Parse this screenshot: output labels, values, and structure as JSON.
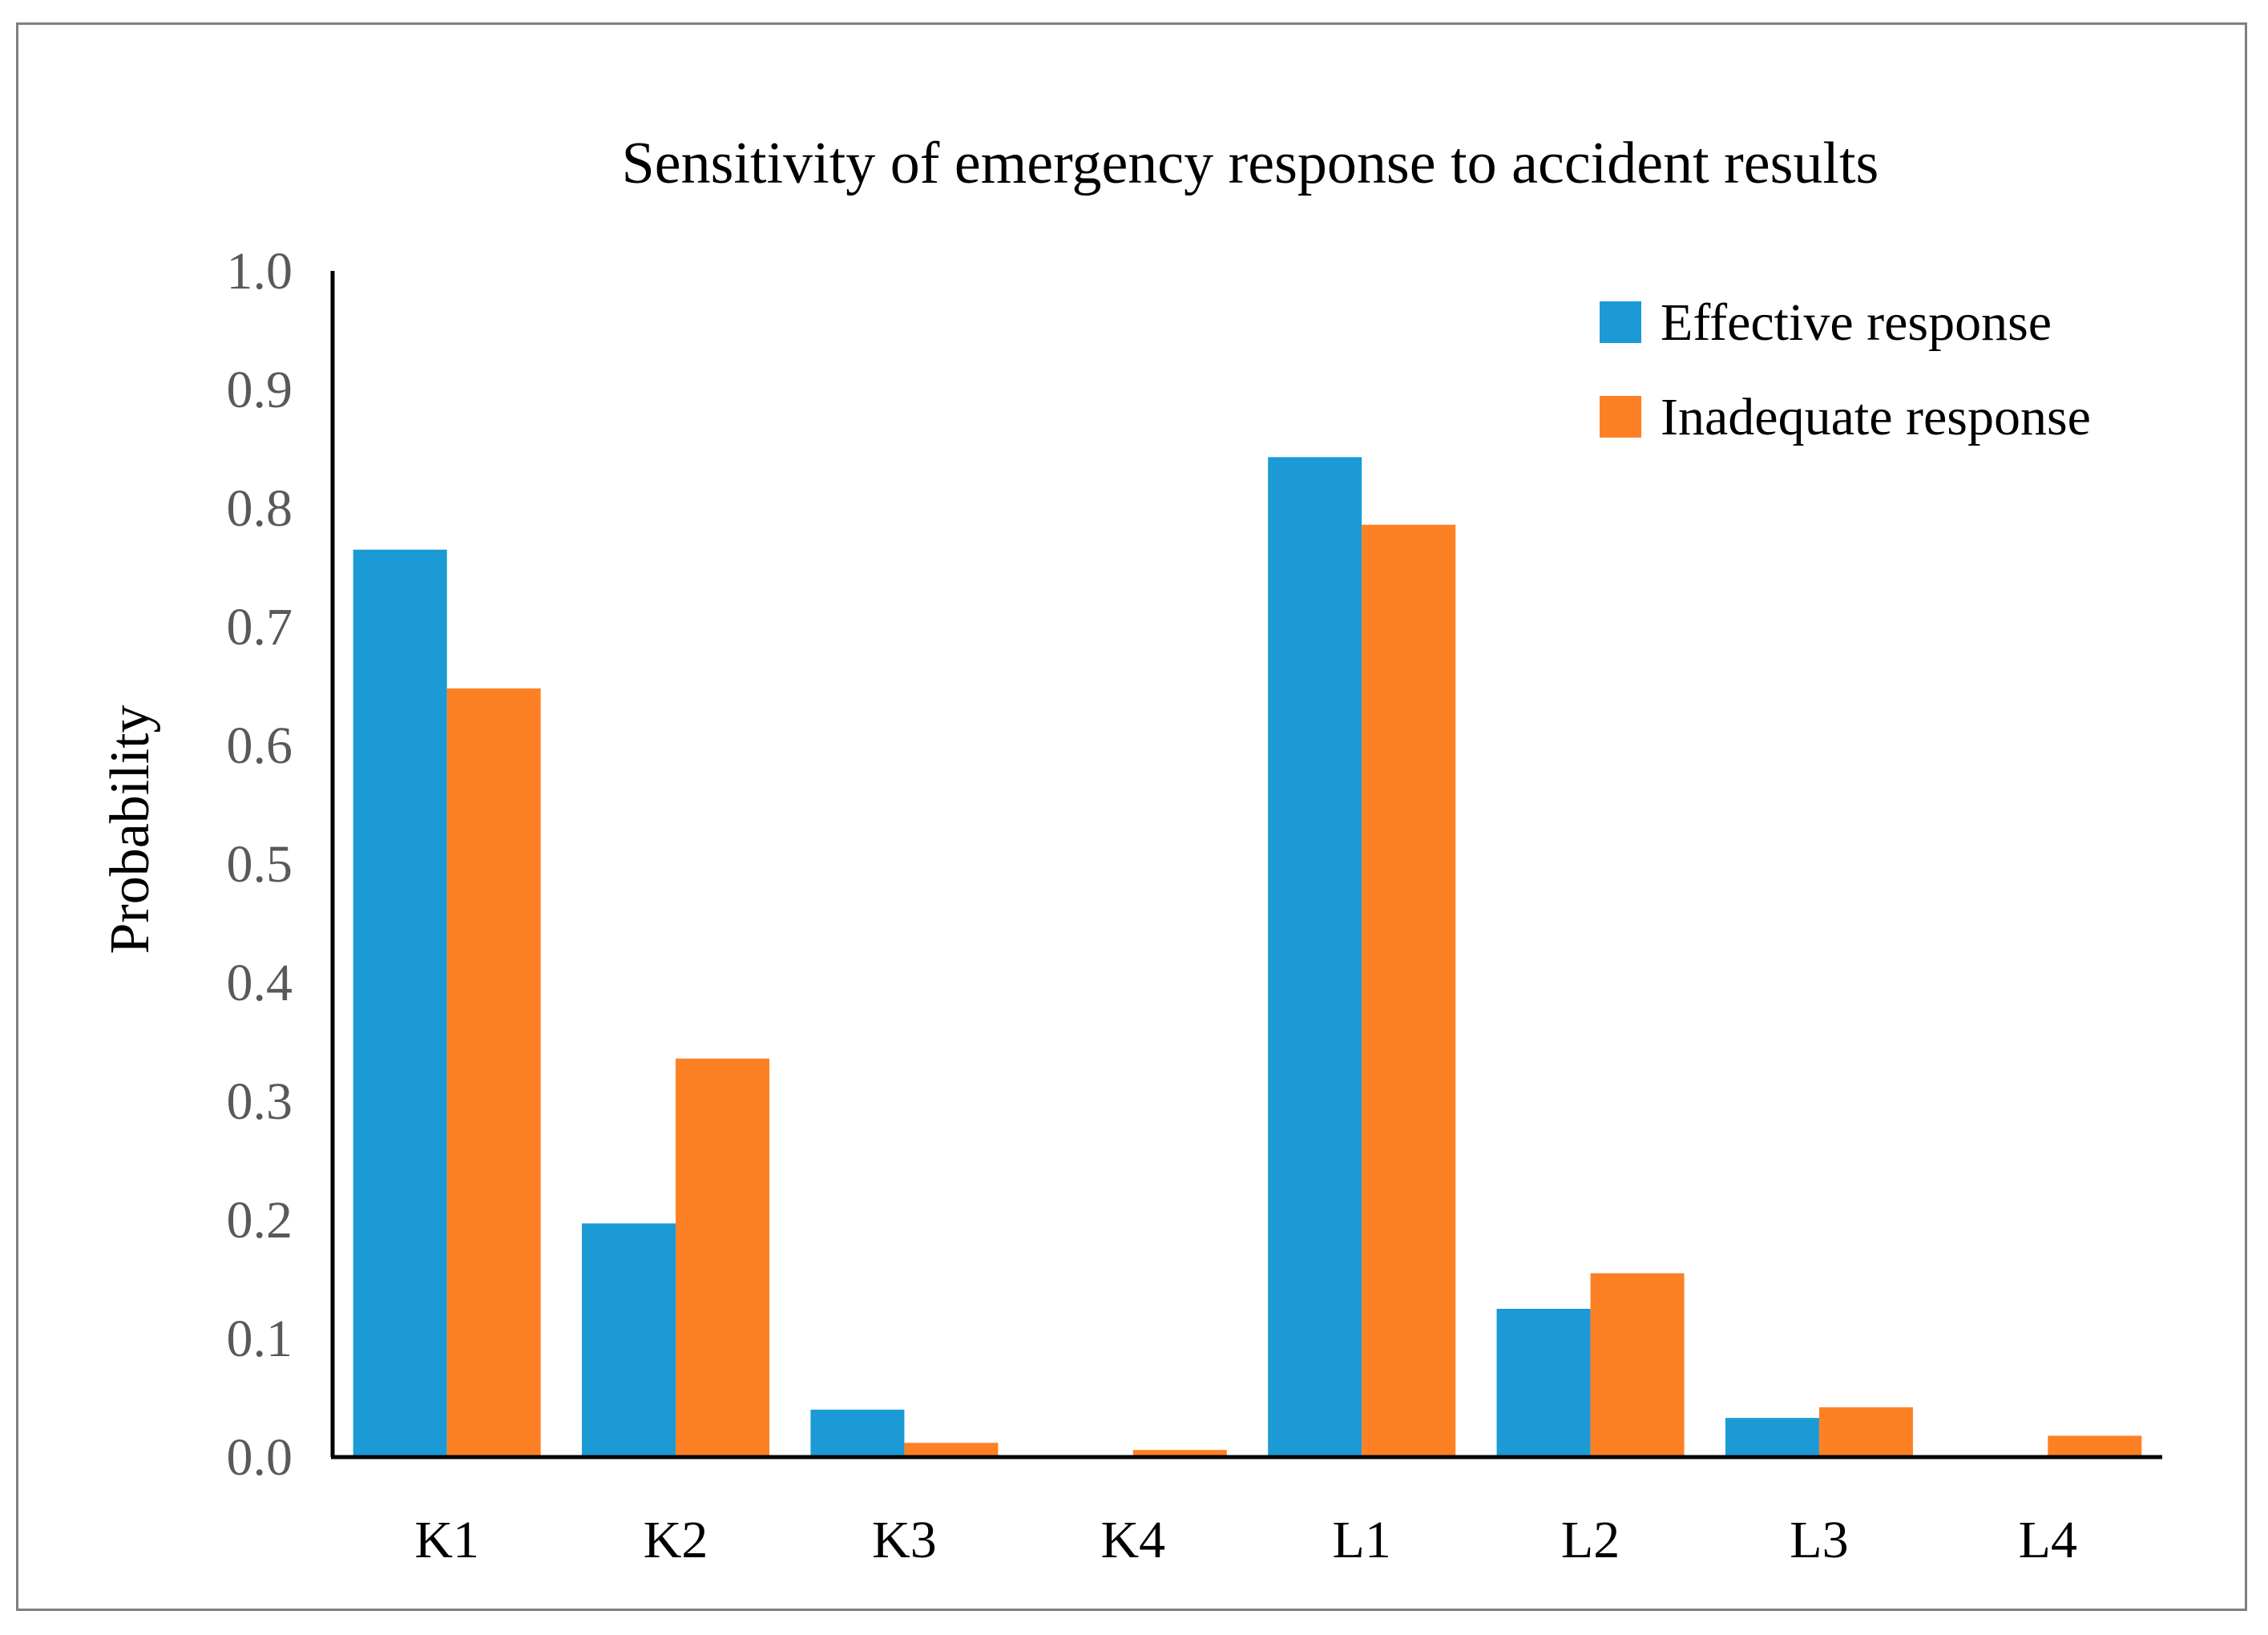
{
  "chart_data": {
    "type": "bar",
    "title": "Sensitivity of emergency response to accident results",
    "xlabel": "",
    "ylabel": "Probability",
    "ylim": [
      0,
      1.0
    ],
    "yticks": [
      "0.0",
      "0.1",
      "0.2",
      "0.3",
      "0.4",
      "0.5",
      "0.6",
      "0.7",
      "0.8",
      "0.9",
      "1.0"
    ],
    "grid": false,
    "legend_position": "top-right",
    "categories": [
      "K1",
      "K2",
      "K3",
      "K4",
      "L1",
      "L2",
      "L3",
      "L4"
    ],
    "series": [
      {
        "name": "Effective response",
        "color": "#1b9ad6",
        "values": [
          0.765,
          0.197,
          0.04,
          0.0,
          0.843,
          0.125,
          0.033,
          0.0
        ]
      },
      {
        "name": "Inadequate response",
        "color": "#fd8124",
        "values": [
          0.648,
          0.336,
          0.012,
          0.006,
          0.786,
          0.155,
          0.042,
          0.018
        ]
      }
    ]
  }
}
